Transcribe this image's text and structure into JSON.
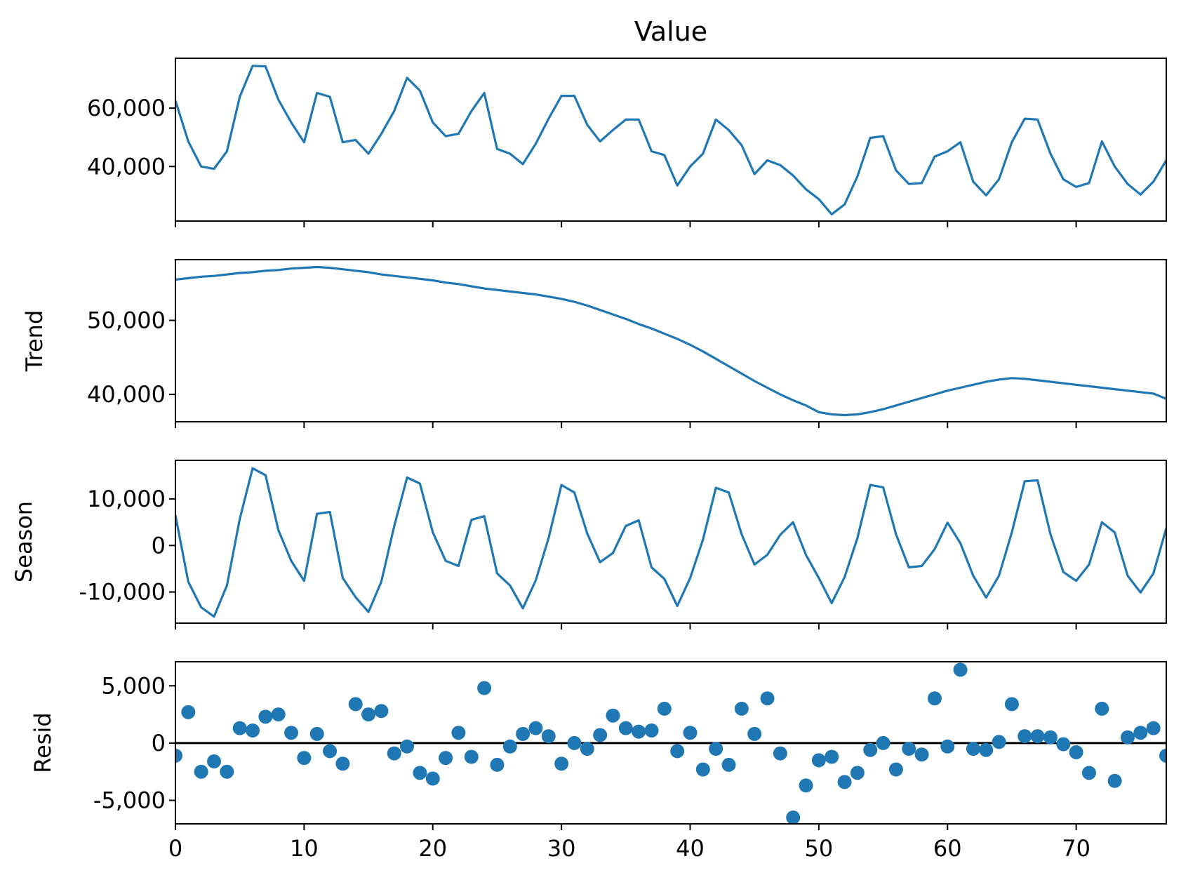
{
  "chart_data": [
    {
      "type": "line",
      "title": "Value",
      "ylabel": "",
      "color": "#1f77b4",
      "ylim": [
        21300,
        77100
      ],
      "yticks": [
        40000,
        60000
      ],
      "ytick_labels": [
        "40,000",
        "60,000"
      ],
      "x": [
        0,
        1,
        2,
        3,
        4,
        5,
        6,
        7,
        8,
        9,
        10,
        11,
        12,
        13,
        14,
        15,
        16,
        17,
        18,
        19,
        20,
        21,
        22,
        23,
        24,
        25,
        26,
        27,
        28,
        29,
        30,
        31,
        32,
        33,
        34,
        35,
        36,
        37,
        38,
        39,
        40,
        41,
        42,
        43,
        44,
        45,
        46,
        47,
        48,
        49,
        50,
        51,
        52,
        53,
        54,
        55,
        56,
        57,
        58,
        59,
        60,
        61,
        62,
        63,
        64,
        65,
        66,
        67,
        68,
        69,
        70,
        71,
        72,
        73,
        74,
        75,
        76,
        77
      ],
      "values": [
        62600,
        48600,
        40000,
        39200,
        45200,
        63900,
        74500,
        74300,
        62900,
        55100,
        48300,
        65200,
        63900,
        48300,
        49100,
        44400,
        51200,
        59000,
        70400,
        66000,
        55100,
        50400,
        51200,
        59000,
        65200,
        46000,
        44400,
        40800,
        47800,
        56400,
        64200,
        64200,
        54300,
        48600,
        52500,
        56100,
        56100,
        45200,
        43900,
        33500,
        40000,
        44400,
        56100,
        52500,
        47300,
        37400,
        42100,
        40500,
        36900,
        32200,
        28800,
        23600,
        27000,
        36600,
        49800,
        50400,
        38700,
        34000,
        34300,
        43400,
        45200,
        48300,
        34800,
        30100,
        35600,
        48300,
        56400,
        56100,
        44400,
        35600,
        33000,
        34300,
        48600,
        40000,
        34000,
        30400,
        34800,
        42100
      ]
    },
    {
      "type": "line",
      "title": "",
      "ylabel": "Trend",
      "color": "#1f77b4",
      "ylim": [
        36300,
        58200
      ],
      "yticks": [
        40000,
        50000
      ],
      "ytick_labels": [
        "40,000",
        "50,000"
      ],
      "values": [
        55500,
        55700,
        55900,
        56000,
        56200,
        56400,
        56500,
        56700,
        56800,
        57000,
        57100,
        57200,
        57100,
        56900,
        56700,
        56500,
        56200,
        56000,
        55800,
        55600,
        55400,
        55100,
        54900,
        54600,
        54300,
        54100,
        53900,
        53700,
        53500,
        53200,
        52900,
        52500,
        52000,
        51400,
        50800,
        50200,
        49500,
        48900,
        48200,
        47500,
        46700,
        45800,
        44800,
        43800,
        42800,
        41800,
        40900,
        40000,
        39200,
        38500,
        37600,
        37300,
        37200,
        37300,
        37600,
        38000,
        38500,
        39000,
        39500,
        40000,
        40500,
        40900,
        41300,
        41700,
        42000,
        42200,
        42100,
        41900,
        41700,
        41500,
        41300,
        41100,
        40900,
        40700,
        40500,
        40300,
        40100,
        39400
      ]
    },
    {
      "type": "line",
      "title": "",
      "ylabel": "Season",
      "color": "#1f77b4",
      "ylim": [
        -16700,
        18300
      ],
      "yticks": [
        -10000,
        0,
        10000
      ],
      "ytick_labels": [
        "-10,000",
        "0",
        "10,000"
      ],
      "values": [
        6500,
        -7800,
        -13300,
        -15300,
        -8600,
        5700,
        16600,
        15100,
        3300,
        -3300,
        -7600,
        6800,
        7200,
        -7000,
        -11100,
        -14300,
        -7800,
        4100,
        14600,
        13300,
        2800,
        -3300,
        -4400,
        5500,
        6300,
        -6000,
        -8600,
        -13500,
        -7500,
        1600,
        13000,
        11400,
        2600,
        -3600,
        -1600,
        4200,
        5400,
        -4700,
        -7200,
        -13000,
        -7000,
        1300,
        12400,
        11400,
        2400,
        -4100,
        -2000,
        2300,
        5000,
        -2000,
        -7000,
        -12400,
        -6800,
        1600,
        13000,
        12500,
        2400,
        -4700,
        -4400,
        -800,
        4900,
        500,
        -6500,
        -11200,
        -6500,
        2800,
        13800,
        14000,
        2400,
        -5700,
        -7600,
        -4100,
        5000,
        2800,
        -6500,
        -10100,
        -6000,
        3700
      ]
    },
    {
      "type": "scatter",
      "title": "",
      "ylabel": "Resid",
      "color": "#1f77b4",
      "reference_line": 0,
      "ylim": [
        -7050,
        7100
      ],
      "yticks": [
        -5000,
        0,
        5000
      ],
      "ytick_labels": [
        "-5,000",
        "0",
        "5,000"
      ],
      "xlim": [
        0,
        77
      ],
      "xticks": [
        0,
        10,
        20,
        30,
        40,
        50,
        60,
        70
      ],
      "xtick_labels": [
        "0",
        "10",
        "20",
        "30",
        "40",
        "50",
        "60",
        "70"
      ],
      "values": [
        -1100,
        2700,
        -2500,
        -1600,
        -2500,
        1300,
        1100,
        2300,
        2500,
        900,
        -1300,
        800,
        -700,
        -1800,
        3400,
        2500,
        2800,
        -900,
        -300,
        -2600,
        -3100,
        -1300,
        900,
        -1200,
        4800,
        -1900,
        -300,
        800,
        1300,
        600,
        -1800,
        0,
        -500,
        700,
        2400,
        1300,
        1000,
        1100,
        3000,
        -700,
        900,
        -2300,
        -500,
        -1900,
        3000,
        800,
        3900,
        -900,
        -6500,
        -3700,
        -1500,
        -1200,
        -3400,
        -2600,
        -600,
        0,
        -2300,
        -500,
        -1000,
        3900,
        -300,
        6400,
        -500,
        -600,
        100,
        3400,
        600,
        600,
        500,
        -100,
        -800,
        -2600,
        3000,
        -3300,
        500,
        900,
        1300,
        -1100
      ]
    }
  ]
}
